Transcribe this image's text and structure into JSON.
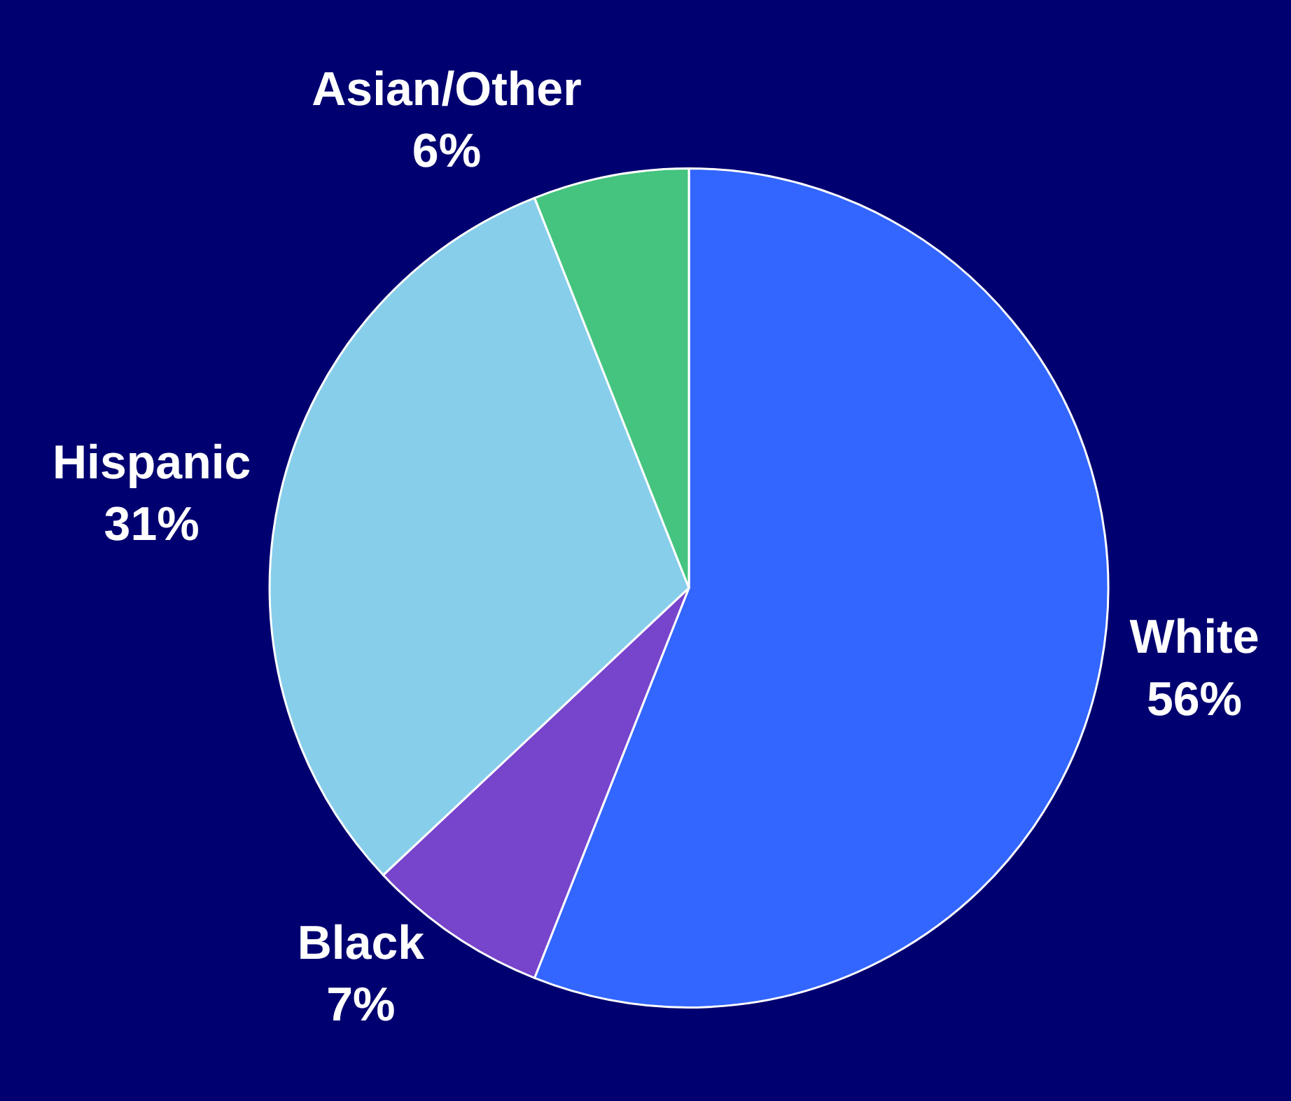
{
  "chart_data": {
    "type": "pie",
    "categories": [
      "White",
      "Black",
      "Hispanic",
      "Asian/Other"
    ],
    "values": [
      56,
      7,
      31,
      6
    ],
    "value_labels": [
      "56%",
      "7%",
      "31%",
      "6%"
    ],
    "colors": [
      "#3366ff",
      "#7744cc",
      "#87ceeb",
      "#44c47f"
    ],
    "legend": false
  }
}
